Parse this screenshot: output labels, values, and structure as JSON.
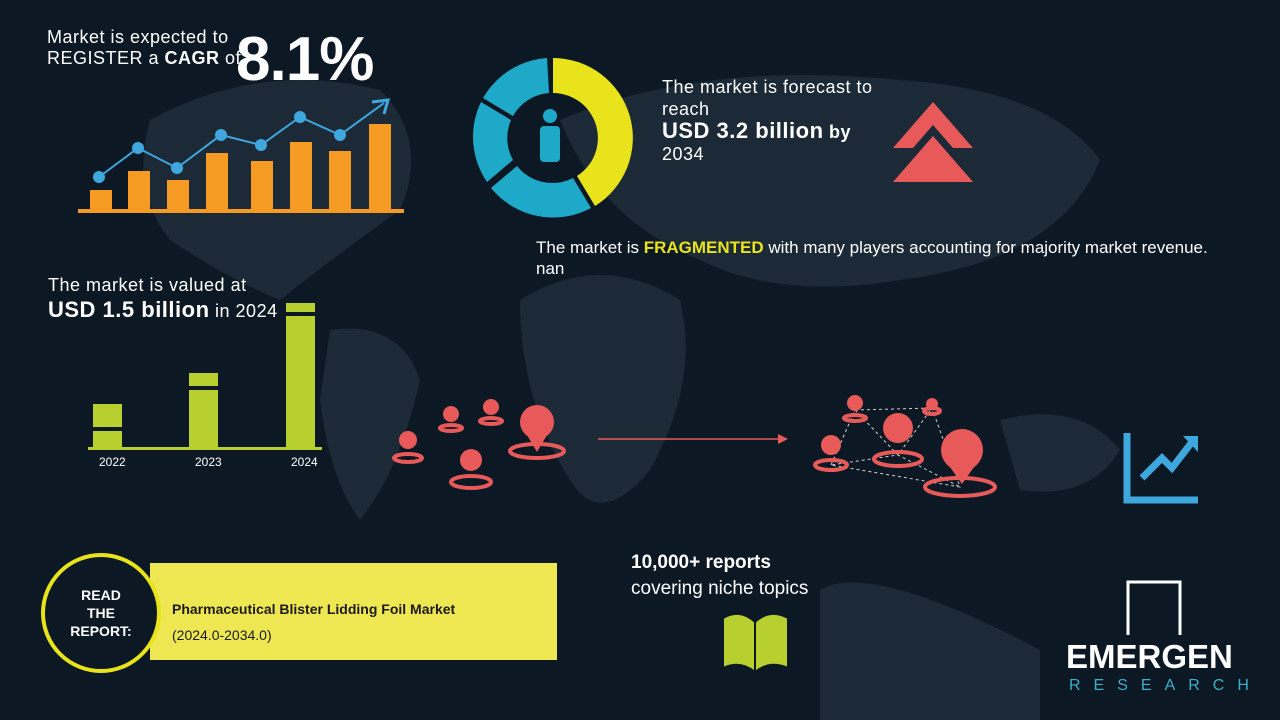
{
  "cagr": {
    "line1": "Market is expected to",
    "line2a": "REGISTER a ",
    "line2b": "CAGR",
    "line2c": " of",
    "value": "8.1%"
  },
  "forecast": {
    "line1": "The market is forecast to",
    "line2": "reach",
    "amount": "USD 3.2 billion",
    "by": " by",
    "year": "2034"
  },
  "fragmented": {
    "pre": "The market is ",
    "word": "FRAGMENTED",
    "post": " with many players accounting for majority market revenue. nan"
  },
  "valued": {
    "line1": "The market is valued at",
    "amount": "USD 1.5 billion",
    "suffix": " in 2024"
  },
  "years": [
    "2022",
    "2023",
    "2024"
  ],
  "reports": {
    "line1": "10,000+ reports",
    "line2": "covering niche topics"
  },
  "read": {
    "label1": "READ",
    "label2": "THE",
    "label3": "REPORT:",
    "title": "Pharmaceutical Blister Lidding Foil Market",
    "period": "(2024.0-2034.0)"
  },
  "logo": {
    "name": "EMERGEN",
    "sub": "RESEARCH"
  },
  "colors": {
    "orange": "#f59a23",
    "blue": "#3ea7de",
    "yellow": "#e8e31a",
    "teal": "#1fa9c9",
    "red": "#e85a5a",
    "green": "#b7cf2f",
    "banner": "#efe752"
  }
}
